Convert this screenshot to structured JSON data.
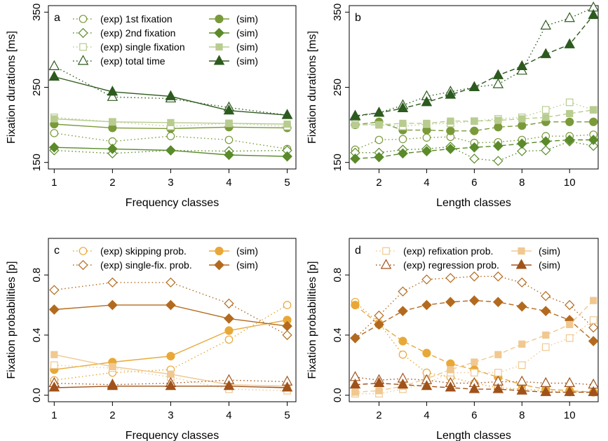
{
  "chart_data": [
    {
      "type": "line",
      "panel_label": "a",
      "xlabel": "Frequency classes",
      "ylabel": "Fixation durations [ms]",
      "x": [
        1,
        2,
        3,
        4,
        5
      ],
      "xlim": [
        0.9,
        5.15
      ],
      "ylim": [
        150,
        350
      ],
      "xticks": [
        1,
        2,
        3,
        4,
        5
      ],
      "yticks": [
        150,
        250,
        350
      ],
      "legend_position": "top",
      "series": [
        {
          "name": "(exp) 1st fixation",
          "kind": "exp",
          "marker": "circle",
          "color": "#7a9a3a",
          "values": [
            189,
            178,
            185,
            180,
            168
          ]
        },
        {
          "name": "(sim)",
          "kind": "sim",
          "marker": "circle",
          "color": "#7a9a3a",
          "values": [
            201,
            196,
            195,
            197,
            196
          ]
        },
        {
          "name": "(exp) 2nd fixation",
          "kind": "exp",
          "marker": "diamond",
          "color": "#5a8a2a",
          "values": [
            166,
            162,
            166,
            165,
            166
          ]
        },
        {
          "name": "(sim)",
          "kind": "sim",
          "marker": "diamond",
          "color": "#5a8a2a",
          "values": [
            170,
            168,
            166,
            160,
            158
          ]
        },
        {
          "name": "(exp) single fixation",
          "kind": "exp",
          "marker": "square",
          "color": "#b8cc90",
          "values": [
            210,
            204,
            198,
            202,
            198
          ]
        },
        {
          "name": "(sim)",
          "kind": "sim",
          "marker": "square",
          "color": "#b8cc90",
          "values": [
            208,
            204,
            203,
            202,
            201
          ]
        },
        {
          "name": "(exp) total time",
          "kind": "exp",
          "marker": "triangle",
          "color": "#2d5a1e",
          "values": [
            278,
            237,
            235,
            223,
            213
          ]
        },
        {
          "name": "(sim)",
          "kind": "sim",
          "marker": "triangle",
          "color": "#2d5a1e",
          "values": [
            264,
            244,
            238,
            219,
            213
          ]
        }
      ]
    },
    {
      "type": "line",
      "panel_label": "b",
      "xlabel": "Length classes",
      "ylabel": "Fixation durations [ms]",
      "x": [
        1,
        2,
        3,
        4,
        5,
        6,
        7,
        8,
        9,
        10,
        11
      ],
      "xlim": [
        0.75,
        11.2
      ],
      "ylim": [
        150,
        350
      ],
      "xticks": [
        2,
        4,
        6,
        8,
        10
      ],
      "yticks": [
        150,
        250,
        350
      ],
      "series": [
        {
          "name": "(exp) 1st fixation",
          "kind": "exp",
          "marker": "circle",
          "color": "#7a9a3a",
          "values": [
            167,
            180,
            181,
            183,
            184,
            176,
            177,
            180,
            185,
            185,
            187
          ]
        },
        {
          "name": "(sim)",
          "kind": "sim",
          "marker": "circle",
          "color": "#7a9a3a",
          "values": [
            200,
            204,
            193,
            193,
            192,
            192,
            197,
            199,
            204,
            204,
            204
          ]
        },
        {
          "name": "(exp) 2nd fixation",
          "kind": "exp",
          "marker": "diamond",
          "color": "#5a8a2a",
          "values": [
            163,
            163,
            167,
            168,
            171,
            155,
            152,
            165,
            166,
            178,
            172
          ]
        },
        {
          "name": "(sim)",
          "kind": "sim",
          "marker": "diamond",
          "color": "#5a8a2a",
          "values": [
            155,
            157,
            162,
            165,
            168,
            170,
            172,
            175,
            178,
            180,
            180
          ]
        },
        {
          "name": "(exp) single fixation",
          "kind": "exp",
          "marker": "square",
          "color": "#b8cc90",
          "values": [
            202,
            200,
            198,
            201,
            202,
            205,
            208,
            210,
            220,
            230,
            220
          ]
        },
        {
          "name": "(sim)",
          "kind": "sim",
          "marker": "square",
          "color": "#b8cc90",
          "values": [
            200,
            200,
            202,
            202,
            205,
            205,
            206,
            208,
            210,
            215,
            220
          ]
        },
        {
          "name": "(exp) total time",
          "kind": "exp",
          "marker": "triangle",
          "color": "#2d5a1e",
          "values": [
            211,
            216,
            226,
            238,
            244,
            250,
            254,
            272,
            332,
            342,
            356
          ]
        },
        {
          "name": "(sim)",
          "kind": "sim",
          "marker": "triangle",
          "color": "#2d5a1e",
          "values": [
            212,
            216,
            222,
            230,
            240,
            250,
            266,
            278,
            294,
            307,
            346
          ]
        }
      ]
    },
    {
      "type": "line",
      "panel_label": "c",
      "xlabel": "Frequency classes",
      "ylabel": "Fixation probabilities [p]",
      "x": [
        1,
        2,
        3,
        4,
        5
      ],
      "xlim": [
        0.9,
        5.15
      ],
      "ylim": [
        0,
        1
      ],
      "xticks": [
        1,
        2,
        3,
        4,
        5
      ],
      "yticks": [
        0.0,
        0.4,
        0.8
      ],
      "legend_position": "top",
      "series": [
        {
          "name": "(exp) skipping prob.",
          "kind": "exp",
          "marker": "circle",
          "color": "#e8a838",
          "values": [
            0.1,
            0.15,
            0.17,
            0.37,
            0.6
          ]
        },
        {
          "name": "(sim)",
          "kind": "sim",
          "marker": "circle",
          "color": "#e8a838",
          "values": [
            0.17,
            0.22,
            0.26,
            0.43,
            0.5
          ]
        },
        {
          "name": "(exp) single-fix. prob.",
          "kind": "exp",
          "marker": "diamond",
          "color": "#b36a1e",
          "values": [
            0.7,
            0.75,
            0.75,
            0.61,
            0.4
          ]
        },
        {
          "name": "(sim)",
          "kind": "sim",
          "marker": "diamond",
          "color": "#b36a1e",
          "values": [
            0.57,
            0.6,
            0.6,
            0.51,
            0.46
          ]
        },
        {
          "name": "",
          "kind": "exp",
          "marker": "square",
          "color": "#f0c890",
          "values": [
            0.2,
            0.18,
            0.12,
            0.04,
            0.03
          ]
        },
        {
          "name": "",
          "kind": "sim",
          "marker": "square",
          "color": "#f0c890",
          "values": [
            0.27,
            0.19,
            0.14,
            0.07,
            0.06
          ]
        },
        {
          "name": "",
          "kind": "exp",
          "marker": "triangle",
          "color": "#a0521a",
          "values": [
            0.08,
            0.07,
            0.08,
            0.1,
            0.09
          ]
        },
        {
          "name": "",
          "kind": "sim",
          "marker": "triangle",
          "color": "#a0521a",
          "values": [
            0.05,
            0.06,
            0.06,
            0.06,
            0.05
          ]
        }
      ]
    },
    {
      "type": "line",
      "panel_label": "d",
      "xlabel": "Length classes",
      "ylabel": "Fixation probabilities [p]",
      "x": [
        1,
        2,
        3,
        4,
        5,
        6,
        7,
        8,
        9,
        10,
        11
      ],
      "xlim": [
        0.75,
        11.2
      ],
      "ylim": [
        0,
        1
      ],
      "xticks": [
        2,
        4,
        6,
        8,
        10
      ],
      "yticks": [
        0.0,
        0.4,
        0.8
      ],
      "legend_position": "top",
      "series": [
        {
          "name": "",
          "kind": "exp",
          "marker": "circle",
          "color": "#e8a838",
          "values": [
            0.62,
            0.48,
            0.27,
            0.15,
            0.12,
            0.08,
            0.05,
            0.04,
            0.03,
            0.02,
            0.02
          ]
        },
        {
          "name": "",
          "kind": "sim",
          "marker": "circle",
          "color": "#e8a838",
          "values": [
            0.6,
            0.47,
            0.36,
            0.28,
            0.21,
            0.17,
            0.12,
            0.07,
            0.04,
            0.03,
            0.02
          ]
        },
        {
          "name": "",
          "kind": "exp",
          "marker": "diamond",
          "color": "#b36a1e",
          "values": [
            0.38,
            0.53,
            0.69,
            0.77,
            0.78,
            0.79,
            0.79,
            0.75,
            0.66,
            0.6,
            0.45
          ]
        },
        {
          "name": "",
          "kind": "sim",
          "marker": "diamond",
          "color": "#b36a1e",
          "values": [
            0.38,
            0.47,
            0.56,
            0.6,
            0.62,
            0.63,
            0.62,
            0.59,
            0.56,
            0.5,
            0.36
          ]
        },
        {
          "name": "(exp) refixation prob.",
          "kind": "exp",
          "marker": "square",
          "color": "#f0c890",
          "values": [
            0.01,
            0.01,
            0.04,
            0.08,
            0.15,
            0.15,
            0.15,
            0.2,
            0.32,
            0.38,
            0.5
          ]
        },
        {
          "name": "(sim)",
          "kind": "sim",
          "marker": "square",
          "color": "#f0c890",
          "values": [
            0.02,
            0.03,
            0.06,
            0.11,
            0.17,
            0.22,
            0.27,
            0.34,
            0.4,
            0.47,
            0.63
          ]
        },
        {
          "name": "(exp) regression prob.",
          "kind": "exp",
          "marker": "triangle",
          "color": "#a0521a",
          "values": [
            0.12,
            0.1,
            0.11,
            0.1,
            0.08,
            0.08,
            0.09,
            0.09,
            0.08,
            0.08,
            0.07
          ]
        },
        {
          "name": "(sim)",
          "kind": "sim",
          "marker": "triangle",
          "color": "#a0521a",
          "values": [
            0.07,
            0.08,
            0.07,
            0.06,
            0.05,
            0.04,
            0.04,
            0.03,
            0.02,
            0.02,
            0.02
          ]
        }
      ]
    }
  ]
}
